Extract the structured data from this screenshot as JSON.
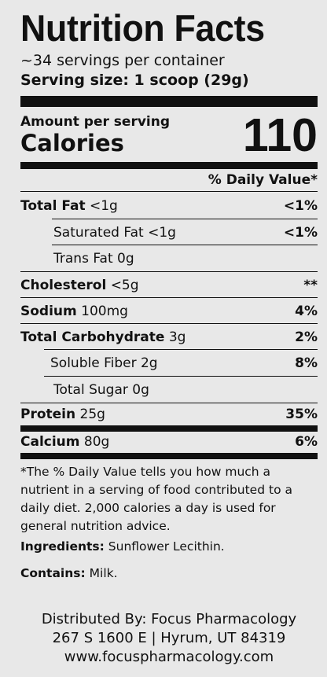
{
  "label": {
    "title": "Nutrition Facts",
    "servings_per_container": "~34 servings per container",
    "serving_size": "Serving size: 1 scoop (29g)",
    "amount_per_serving": "Amount per serving",
    "calories_label": "Calories",
    "calories_value": "110",
    "daily_value_header": "% Daily Value*"
  },
  "nutrients": [
    {
      "name": "Total Fat",
      "amount": "<1g",
      "dv": "<1%"
    },
    {
      "name": "Saturated Fat",
      "amount": "<1g",
      "dv": "<1%"
    },
    {
      "name": "Trans Fat",
      "amount": "0g",
      "dv": ""
    },
    {
      "name": "Cholesterol",
      "amount": "<5g",
      "dv": "**"
    },
    {
      "name": "Sodium",
      "amount": "100mg",
      "dv": "4%"
    },
    {
      "name": "Total Carbohydrate",
      "amount": "3g",
      "dv": "2%"
    },
    {
      "name": "Soluble Fiber",
      "amount": "2g",
      "dv": "8%"
    },
    {
      "name": "Total Sugar",
      "amount": "0g",
      "dv": ""
    },
    {
      "name": "Protein",
      "amount": "25g",
      "dv": "35%"
    },
    {
      "name": "Calcium",
      "amount": "80g",
      "dv": "6%"
    }
  ],
  "footnote": "*The % Daily Value tells you how much a nutrient in a serving of food contributed to a daily diet. 2,000 calories a day is used for general nutrition advice.",
  "ingredients": {
    "label": "Ingredients:",
    "value": "Sunflower Lecithin."
  },
  "contains": {
    "label": "Contains:",
    "value": "Milk."
  },
  "distributor": {
    "line1": "Distributed By: Focus Pharmacology",
    "line2": "267 S 1600 E | Hyrum, UT 84319",
    "line3": "www.focuspharmacology.com"
  }
}
